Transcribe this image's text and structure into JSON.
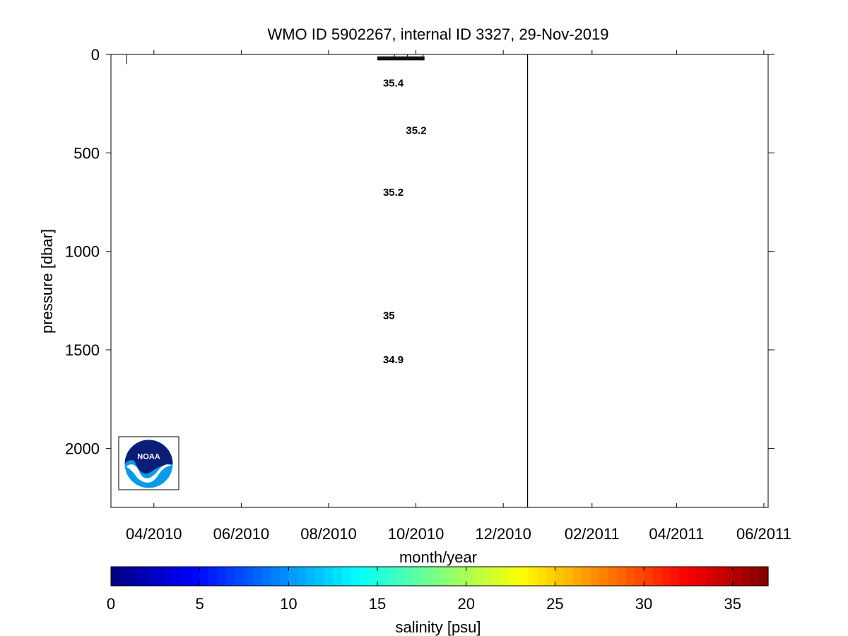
{
  "chart_data": {
    "type": "contour",
    "title": "WMO ID 5902267, internal ID 3327, 29-Nov-2019",
    "xlabel": "month/year",
    "ylabel": "pressure [dbar]",
    "x_tick_labels": [
      "04/2010",
      "06/2010",
      "08/2010",
      "10/2010",
      "12/2010",
      "02/2011",
      "04/2011",
      "06/2011"
    ],
    "x_tick_dates": [
      "2010-04-01",
      "2010-06-01",
      "2010-08-01",
      "2010-10-01",
      "2010-12-01",
      "2011-02-01",
      "2011-04-01",
      "2011-06-01"
    ],
    "xlim": [
      "2010-03-02",
      "2011-06-04"
    ],
    "y_ticks": [
      0,
      500,
      1000,
      1500,
      2000
    ],
    "y_tick_labels": [
      "0",
      "500",
      "1000",
      "1500",
      "2000"
    ],
    "ylim": [
      0,
      2300
    ],
    "y_reversed": true,
    "divider_date": "2010-12-18",
    "contour_labels": [
      {
        "text": "35.2",
        "date": "2010-09-24",
        "pressure": 385
      },
      {
        "text": "35.2",
        "date": "2010-09-08",
        "pressure": 700
      },
      {
        "text": "35",
        "date": "2010-09-08",
        "pressure": 1325
      },
      {
        "text": "34.9",
        "date": "2010-09-08",
        "pressure": 1550
      },
      {
        "text": "35.4",
        "date": "2010-09-08",
        "pressure": 145
      }
    ],
    "profile_ticks": [
      {
        "date": "2010-03-13",
        "pressure_end": 50
      },
      {
        "date": "2010-09-16",
        "pressure_end": 20
      },
      {
        "date": "2010-09-25",
        "pressure_end": 20
      },
      {
        "date": "2010-10-06",
        "pressure_end": 20
      }
    ],
    "surface_band": {
      "date_start": "2010-09-04",
      "date_end": "2010-10-07",
      "pressure": [
        10,
        30
      ]
    },
    "colorbar": {
      "label": "salinity [psu]",
      "range": [
        0,
        37
      ],
      "ticks": [
        0,
        5,
        10,
        15,
        20,
        25,
        30,
        35
      ],
      "tick_labels": [
        "0",
        "5",
        "10",
        "15",
        "20",
        "25",
        "30",
        "35"
      ],
      "colormap": "jet",
      "levels": 74
    },
    "logo": "noaa-logo"
  },
  "logo": {
    "text": "NOAA",
    "top_color": "#0a1e78",
    "bottom_color": "#0a9be6"
  }
}
